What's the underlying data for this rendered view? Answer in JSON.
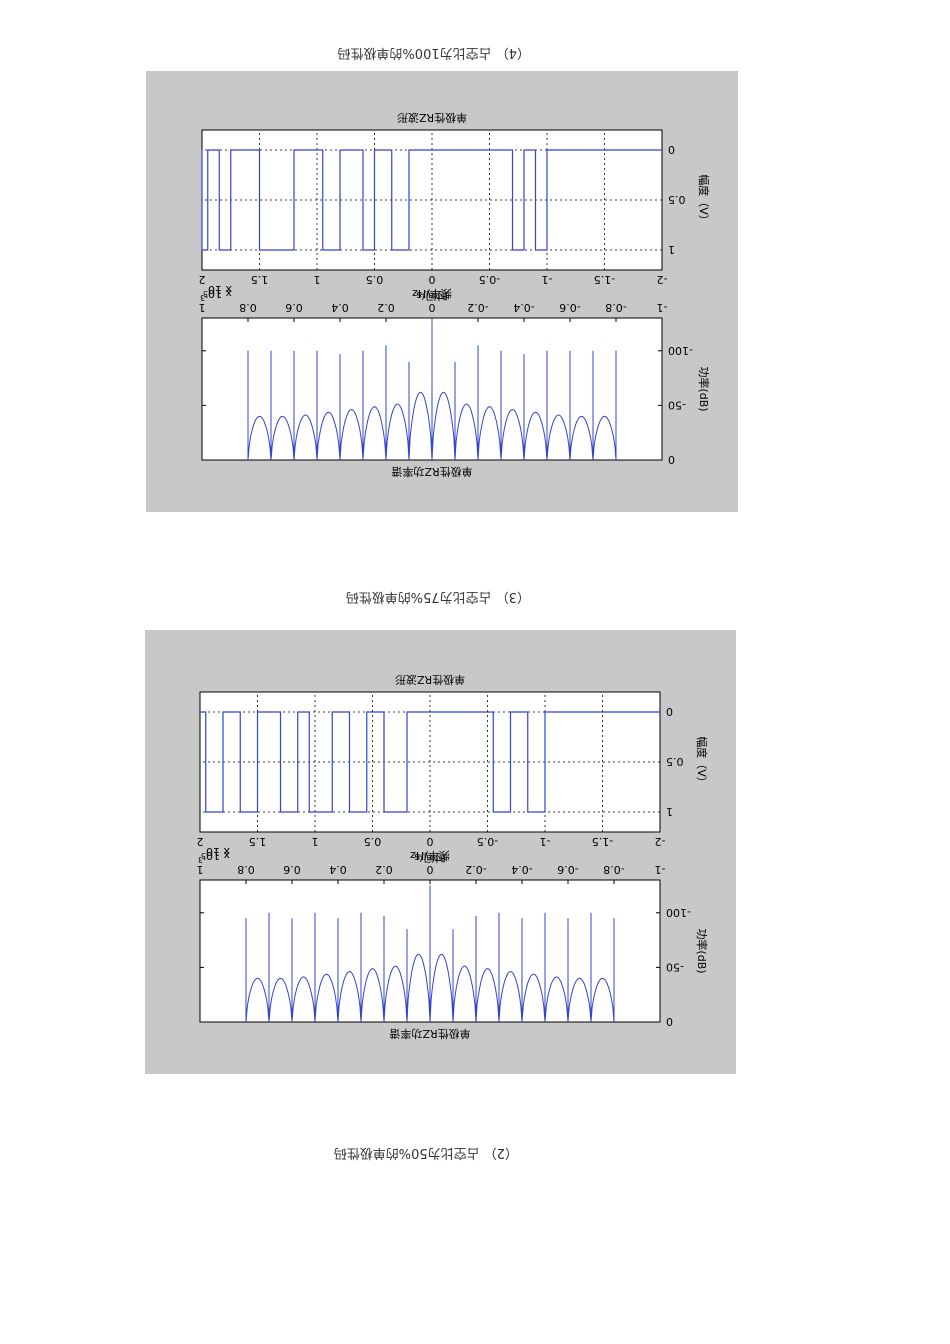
{
  "captions": {
    "c2": "（2） 占空比为50%的单极性码",
    "c3": "（3） 占空比为75%的单极性码",
    "c4": "（4） 占空比为100%的单极性码"
  },
  "figures": [
    {
      "id": "fig2",
      "spectrum": {
        "title": "单极性RZ功率谱",
        "xlabel": "频率/Hz",
        "ylabel": "功率(dB)",
        "exponent": "x 10^5",
        "xticks": [
          "-1",
          "-0.8",
          "-0.6",
          "-0.4",
          "-0.2",
          "0",
          "0.2",
          "0.4",
          "0.6",
          "0.8",
          "1"
        ],
        "yticks": [
          "0",
          "-50",
          "-100"
        ]
      },
      "waveform": {
        "title": "单极性RZ波形",
        "xlabel": "时间/s",
        "ylabel": "幅度（V）",
        "exponent": "x 10^-3",
        "xticks": [
          "-2",
          "-1.5",
          "-1",
          "-0.5",
          "0",
          "0.5",
          "1",
          "1.5",
          "2"
        ],
        "yticks": [
          "0",
          "0.5",
          "1"
        ]
      }
    },
    {
      "id": "fig3",
      "spectrum": {
        "title": "单极性RZ功率谱",
        "xlabel": "频率/Hz",
        "ylabel": "功率(dB)",
        "exponent": "x 10^5",
        "xticks": [
          "-1",
          "-0.8",
          "-0.6",
          "-0.4",
          "-0.2",
          "0",
          "0.2",
          "0.4",
          "0.6",
          "0.8",
          "1"
        ],
        "yticks": [
          "0",
          "-50",
          "-100"
        ]
      },
      "waveform": {
        "title": "单极性RZ波形",
        "xlabel": "时间/s",
        "ylabel": "幅度（V）",
        "exponent": "x 10^-3",
        "xticks": [
          "-2",
          "-1.5",
          "-1",
          "-0.5",
          "0",
          "0.5",
          "1",
          "1.5",
          "2"
        ],
        "yticks": [
          "0",
          "0.5",
          "1"
        ]
      }
    }
  ],
  "chart_data": [
    {
      "figure": "fig2",
      "type": "line",
      "title": "单极性RZ功率谱",
      "xlabel": "频率/Hz",
      "ylabel": "功率(dB)",
      "x_scale": "x 10^5",
      "xlim": [
        -1,
        1
      ],
      "ylim": [
        -130,
        0
      ],
      "spike_x": [
        -0.8,
        -0.7,
        -0.6,
        -0.5,
        -0.4,
        -0.3,
        -0.2,
        -0.1,
        0,
        0.1,
        0.2,
        0.3,
        0.4,
        0.5,
        0.6,
        0.7,
        0.8
      ],
      "spike_y": [
        -100,
        -100,
        -100,
        -100,
        -97,
        -100,
        -105,
        -90,
        -130,
        -90,
        -105,
        -100,
        -97,
        -100,
        -100,
        -100,
        -100
      ],
      "grid": true
    },
    {
      "figure": "fig2",
      "type": "line",
      "title": "单极性RZ波形",
      "xlabel": "时间/s",
      "ylabel": "幅度（V）",
      "x_scale": "x 10^-3",
      "xlim": [
        -2,
        2
      ],
      "ylim": [
        0,
        1.2
      ],
      "pulse_intervals": [
        [
          -1.0,
          -0.9
        ],
        [
          -0.8,
          -0.7
        ],
        [
          0.2,
          0.35
        ],
        [
          0.5,
          0.6
        ],
        [
          0.8,
          0.95
        ],
        [
          1.2,
          1.5
        ],
        [
          1.75,
          1.85
        ],
        [
          1.95,
          2.0
        ]
      ],
      "grid": true
    },
    {
      "figure": "fig3",
      "type": "line",
      "title": "单极性RZ功率谱",
      "xlabel": "频率/Hz",
      "ylabel": "功率(dB)",
      "x_scale": "x 10^5",
      "xlim": [
        -1,
        1
      ],
      "ylim": [
        -130,
        0
      ],
      "spike_x": [
        -0.8,
        -0.7,
        -0.6,
        -0.5,
        -0.4,
        -0.3,
        -0.2,
        -0.1,
        0,
        0.1,
        0.2,
        0.3,
        0.4,
        0.5,
        0.6,
        0.7,
        0.8
      ],
      "spike_y": [
        -95,
        -100,
        -95,
        -100,
        -95,
        -100,
        -97,
        -85,
        -125,
        -85,
        -97,
        -100,
        -95,
        -100,
        -95,
        -100,
        -95
      ],
      "grid": true
    },
    {
      "figure": "fig3",
      "type": "line",
      "title": "单极性RZ波形",
      "xlabel": "时间/s",
      "ylabel": "幅度（V）",
      "x_scale": "x 10^-3",
      "xlim": [
        -2,
        2
      ],
      "ylim": [
        0,
        1.2
      ],
      "pulse_intervals": [
        [
          -1.0,
          -0.85
        ],
        [
          -0.7,
          -0.55
        ],
        [
          0.2,
          0.4
        ],
        [
          0.55,
          0.7
        ],
        [
          0.85,
          1.05
        ],
        [
          1.15,
          1.3
        ],
        [
          1.5,
          1.65
        ],
        [
          1.8,
          1.95
        ]
      ],
      "grid": true
    }
  ]
}
